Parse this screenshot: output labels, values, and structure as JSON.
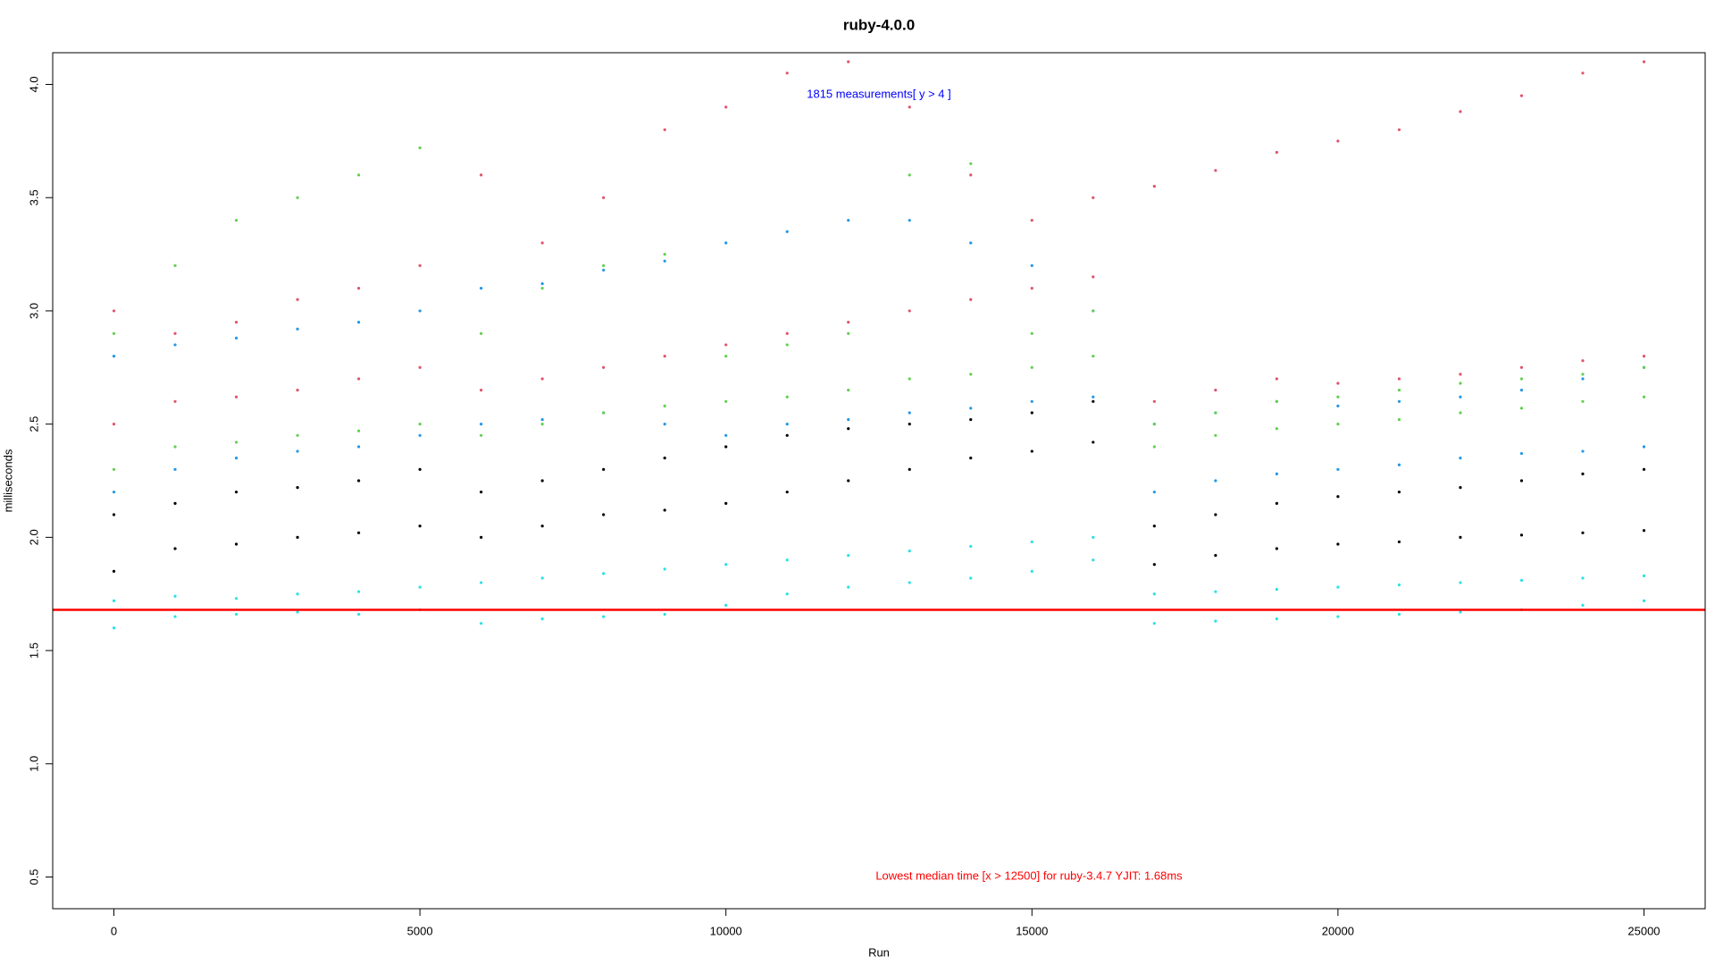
{
  "chart_data": {
    "type": "scatter",
    "title": "ruby-4.0.0",
    "x_label": "Run",
    "y_label": "milliseconds",
    "xlim": [
      -1000,
      26000
    ],
    "ylim": [
      0.36,
      4.14
    ],
    "xticks": [
      0,
      5000,
      10000,
      15000,
      20000,
      25000
    ],
    "yticks": [
      0.5,
      {
        "value": 1,
        "label": "1.0"
      },
      1.5,
      {
        "value": 2,
        "label": "2.0"
      },
      2.5,
      {
        "value": 3,
        "label": "3.0"
      },
      3.5,
      {
        "value": 4,
        "label": "4.0"
      }
    ],
    "grid": false,
    "reference_line": {
      "value": 1.68,
      "color": "#ff0000"
    },
    "annotations": [
      {
        "text": "1815 measurements[ y >  4 ]",
        "color": "#0000ff"
      },
      {
        "text": "Lowest median time [x > 12500] for ruby-3.4.7 YJIT: 1.68ms",
        "color": "#ff0000"
      }
    ],
    "series": [
      {
        "color": "#28E2E5",
        "x": [
          0,
          1000,
          2000,
          3000,
          4000,
          5000,
          6000,
          7000,
          8000,
          9000,
          10000,
          11000,
          12000,
          13000,
          14000,
          15000,
          16000,
          17000,
          18000,
          19000,
          20000,
          21000,
          22000,
          23000,
          24000,
          25000,
          0,
          1000,
          2000,
          3000,
          4000,
          5000,
          6000,
          7000,
          8000,
          9000,
          10000,
          11000,
          12000,
          13000,
          14000,
          15000,
          16000,
          17000,
          18000,
          19000,
          20000,
          21000,
          22000,
          23000,
          24000,
          25000
        ],
        "values": [
          1.72,
          1.74,
          1.73,
          1.75,
          1.76,
          1.78,
          1.8,
          1.82,
          1.84,
          1.86,
          1.88,
          1.9,
          1.92,
          1.94,
          1.96,
          1.98,
          2.0,
          1.75,
          1.76,
          1.77,
          1.78,
          1.79,
          1.8,
          1.81,
          1.82,
          1.83,
          1.6,
          1.65,
          1.66,
          1.67,
          1.66,
          1.68,
          1.62,
          1.64,
          1.65,
          1.66,
          1.7,
          1.75,
          1.78,
          1.8,
          1.82,
          1.85,
          1.9,
          1.62,
          1.63,
          1.64,
          1.65,
          1.66,
          1.67,
          1.68,
          1.7,
          1.72
        ]
      },
      {
        "color": "#000000",
        "x": [
          0,
          1000,
          2000,
          3000,
          4000,
          5000,
          6000,
          7000,
          8000,
          9000,
          10000,
          11000,
          12000,
          13000,
          14000,
          15000,
          16000,
          17000,
          18000,
          19000,
          20000,
          21000,
          22000,
          23000,
          24000,
          25000,
          0,
          1000,
          2000,
          3000,
          4000,
          5000,
          6000,
          7000,
          8000,
          9000,
          10000,
          11000,
          12000,
          13000,
          14000,
          15000,
          16000,
          17000,
          18000,
          19000,
          20000,
          21000,
          22000,
          23000,
          24000,
          25000
        ],
        "values": [
          1.85,
          1.95,
          1.97,
          2.0,
          2.02,
          2.05,
          2.0,
          2.05,
          2.1,
          2.12,
          2.15,
          2.2,
          2.25,
          2.3,
          2.35,
          2.38,
          2.42,
          1.88,
          1.92,
          1.95,
          1.97,
          1.98,
          2.0,
          2.01,
          2.02,
          2.03,
          2.1,
          2.15,
          2.2,
          2.22,
          2.25,
          2.3,
          2.2,
          2.25,
          2.3,
          2.35,
          2.4,
          2.45,
          2.48,
          2.5,
          2.52,
          2.55,
          2.6,
          2.05,
          2.1,
          2.15,
          2.18,
          2.2,
          2.22,
          2.25,
          2.28,
          2.3
        ]
      },
      {
        "color": "#2297E6",
        "x": [
          0,
          1000,
          2000,
          3000,
          4000,
          5000,
          6000,
          7000,
          8000,
          9000,
          10000,
          11000,
          12000,
          13000,
          14000,
          15000,
          16000,
          17000,
          18000,
          19000,
          20000,
          21000,
          22000,
          23000,
          24000,
          25000,
          0,
          1000,
          2000,
          3000,
          4000,
          5000,
          6000,
          7000,
          8000,
          9000,
          10000,
          11000,
          12000,
          13000,
          14000,
          15000,
          16000,
          17000,
          18000,
          19000,
          20000,
          21000,
          22000,
          23000,
          24000,
          25000
        ],
        "values": [
          2.2,
          2.3,
          2.35,
          2.38,
          2.4,
          2.45,
          2.5,
          2.52,
          2.55,
          2.5,
          2.45,
          2.5,
          2.52,
          2.55,
          2.57,
          2.6,
          2.62,
          2.2,
          2.25,
          2.28,
          2.3,
          2.32,
          2.35,
          2.37,
          2.38,
          2.4,
          2.8,
          2.85,
          2.88,
          2.92,
          2.95,
          3.0,
          3.1,
          3.12,
          3.18,
          3.22,
          3.3,
          3.35,
          3.4,
          3.4,
          3.3,
          3.2,
          3.0,
          2.5,
          2.55,
          2.6,
          2.58,
          2.6,
          2.62,
          2.65,
          2.7,
          2.75
        ]
      },
      {
        "color": "#61D04F",
        "x": [
          0,
          1000,
          2000,
          3000,
          4000,
          5000,
          6000,
          7000,
          8000,
          9000,
          10000,
          11000,
          12000,
          13000,
          14000,
          15000,
          16000,
          17000,
          18000,
          19000,
          20000,
          21000,
          22000,
          23000,
          24000,
          25000,
          0,
          1000,
          2000,
          3000,
          4000,
          5000,
          6000,
          7000,
          8000,
          9000,
          10000,
          11000,
          12000,
          13000,
          14000,
          15000,
          16000,
          17000,
          18000,
          19000,
          20000,
          21000,
          22000,
          23000,
          24000,
          25000
        ],
        "values": [
          2.3,
          2.4,
          2.42,
          2.45,
          2.47,
          2.5,
          2.45,
          2.5,
          2.55,
          2.58,
          2.6,
          2.62,
          2.65,
          2.7,
          2.72,
          2.75,
          2.8,
          2.4,
          2.45,
          2.48,
          2.5,
          2.52,
          2.55,
          2.57,
          2.6,
          2.62,
          2.9,
          3.2,
          3.4,
          3.5,
          3.6,
          3.72,
          2.9,
          3.1,
          3.2,
          3.25,
          2.8,
          2.85,
          2.9,
          3.6,
          3.65,
          2.9,
          3.0,
          2.5,
          2.55,
          2.6,
          2.62,
          2.65,
          2.68,
          2.7,
          2.72,
          2.75
        ]
      },
      {
        "color": "#DF536B",
        "x": [
          0,
          1000,
          2000,
          3000,
          4000,
          5000,
          6000,
          7000,
          8000,
          9000,
          10000,
          11000,
          12000,
          13000,
          14000,
          15000,
          16000,
          17000,
          18000,
          19000,
          20000,
          21000,
          22000,
          23000,
          24000,
          25000,
          0,
          1000,
          2000,
          3000,
          4000,
          5000,
          6000,
          7000,
          8000,
          9000,
          10000,
          11000,
          12000,
          13000,
          14000,
          15000,
          16000,
          17000,
          18000,
          19000,
          20000,
          21000,
          22000,
          23000,
          24000,
          25000
        ],
        "values": [
          2.5,
          2.6,
          2.62,
          2.65,
          2.7,
          2.75,
          2.65,
          2.7,
          2.75,
          2.8,
          2.85,
          2.9,
          2.95,
          3.0,
          3.05,
          3.1,
          3.15,
          2.6,
          2.65,
          2.7,
          2.68,
          2.7,
          2.72,
          2.75,
          2.78,
          2.8,
          3.0,
          2.9,
          2.95,
          3.05,
          3.1,
          3.2,
          3.6,
          3.3,
          3.5,
          3.8,
          3.9,
          4.05,
          4.1,
          3.9,
          3.6,
          3.4,
          3.5,
          3.55,
          3.62,
          3.7,
          3.75,
          3.8,
          3.88,
          3.95,
          4.05,
          4.1
        ]
      }
    ]
  }
}
